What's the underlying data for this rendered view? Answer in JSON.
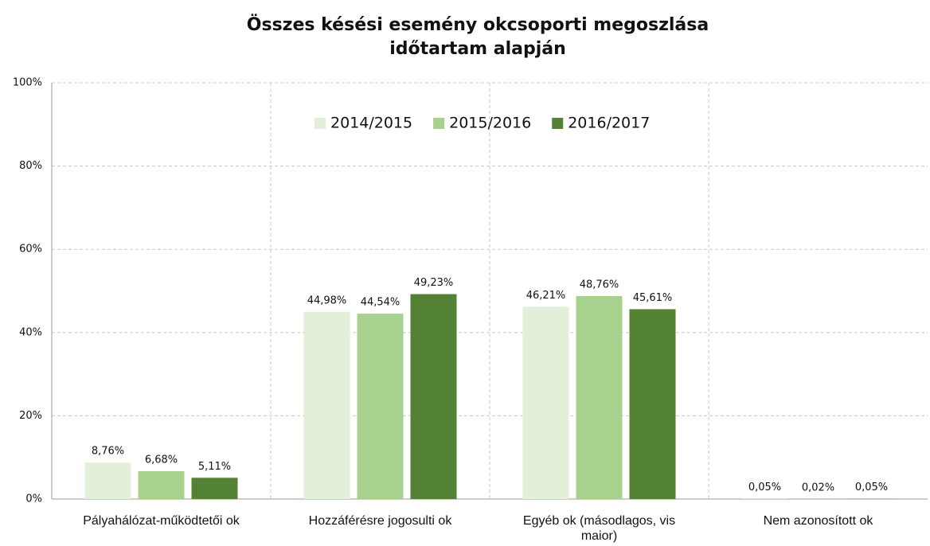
{
  "chart_data": {
    "type": "bar",
    "title": [
      "Összes késési esemény okcsoporti megoszlása",
      "időtartam alapján"
    ],
    "categories": [
      "Pályahálózat-működtetői ok",
      "Hozzáférésre jogosulti ok",
      "Egyéb ok (másodlagos, vis maior)",
      "Nem azonosított ok"
    ],
    "series": [
      {
        "name": "2014/2015",
        "color": "#e2efd9",
        "values": [
          8.76,
          44.98,
          46.21,
          0.05
        ],
        "value_labels": [
          "8,76%",
          "44,98%",
          "46,21%",
          "0,05%"
        ]
      },
      {
        "name": "2015/2016",
        "color": "#a9d18e",
        "values": [
          6.68,
          44.54,
          48.76,
          0.02
        ],
        "value_labels": [
          "6,68%",
          "44,54%",
          "48,76%",
          "0,02%"
        ]
      },
      {
        "name": "2016/2017",
        "color": "#548235",
        "values": [
          5.11,
          49.23,
          45.61,
          0.05
        ],
        "value_labels": [
          "5,11%",
          "49,23%",
          "45,61%",
          "0,05%"
        ]
      }
    ],
    "ylim": [
      0,
      100
    ],
    "yticks": [
      {
        "value": 0,
        "label": "0%"
      },
      {
        "value": 20,
        "label": "20%"
      },
      {
        "value": 40,
        "label": "40%"
      },
      {
        "value": 60,
        "label": "60%"
      },
      {
        "value": 80,
        "label": "80%"
      },
      {
        "value": 100,
        "label": "100%"
      }
    ],
    "grid": true,
    "legend": "top"
  }
}
